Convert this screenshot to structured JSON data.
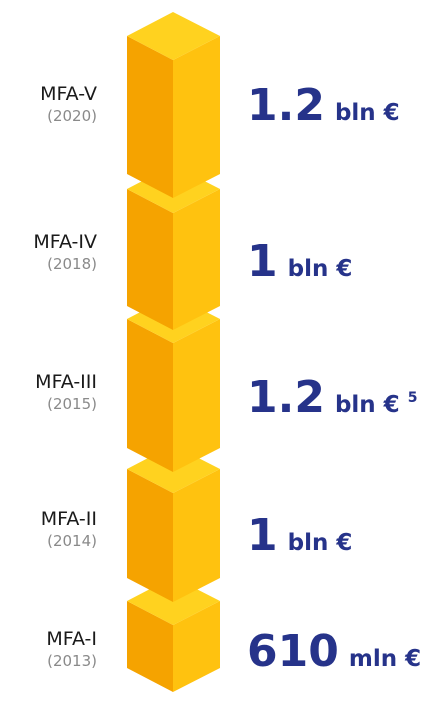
{
  "items": [
    {
      "label": "MFA-V",
      "year": "(2020)",
      "amount": "1.2",
      "unit": "bln €"
    },
    {
      "label": "MFA-IV",
      "year": "(2018)",
      "amount": "1",
      "unit": "bln €"
    },
    {
      "label": "MFA-III",
      "year": "(2015)",
      "amount": "1.2",
      "unit": "bln €",
      "footnote": "5"
    },
    {
      "label": "MFA-II",
      "year": "(2014)",
      "amount": "1",
      "unit": "bln €"
    },
    {
      "label": "MFA-I",
      "year": "(2013)",
      "amount": "610",
      "unit": "mln €"
    }
  ]
}
